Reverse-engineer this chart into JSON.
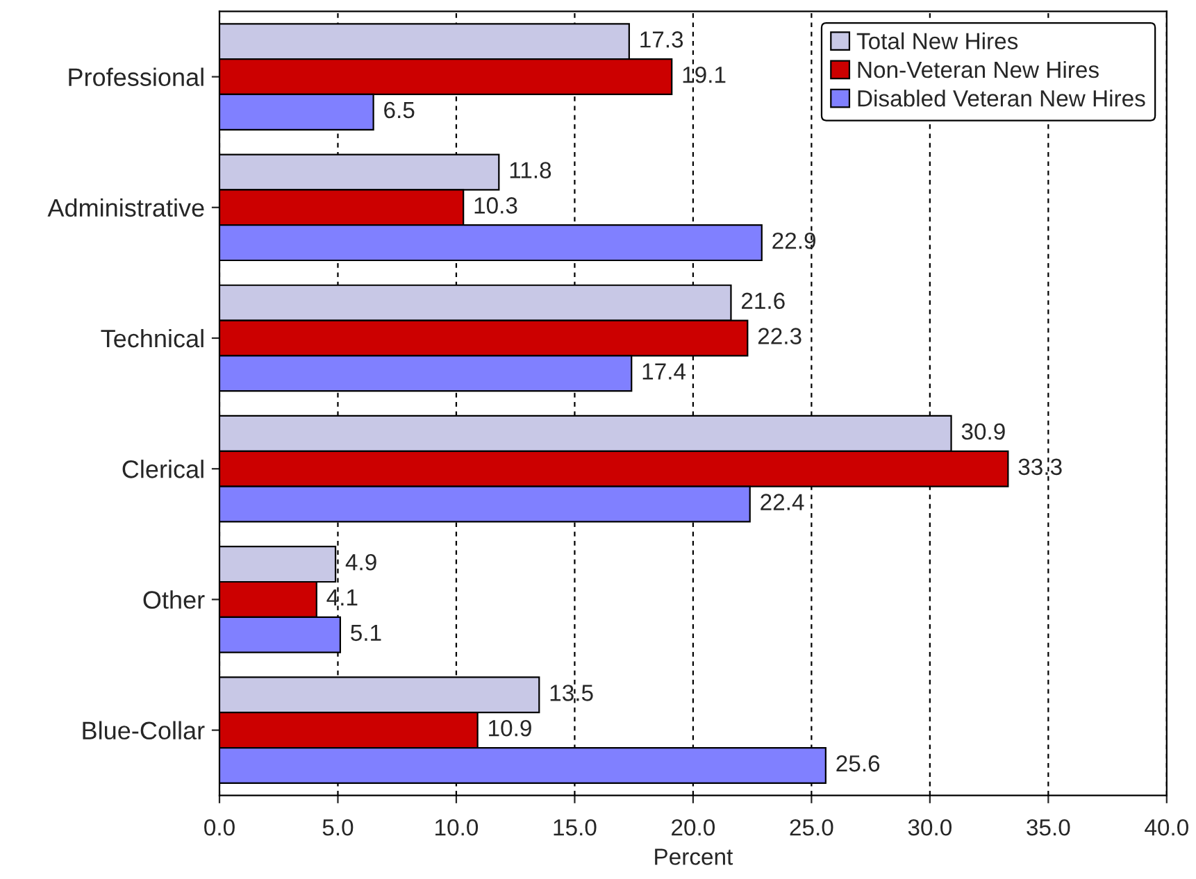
{
  "chart_data": {
    "type": "bar",
    "orientation": "horizontal",
    "xlabel": "Percent",
    "categories": [
      "Professional",
      "Administrative",
      "Technical",
      "Clerical",
      "Other",
      "Blue-Collar"
    ],
    "series": [
      {
        "name": "Total New Hires",
        "color": "#c8c8e6",
        "values": [
          17.3,
          11.8,
          21.6,
          30.9,
          4.9,
          13.5
        ]
      },
      {
        "name": "Non-Veteran New Hires",
        "color": "#cc0000",
        "values": [
          19.1,
          10.3,
          22.3,
          33.3,
          4.1,
          10.9
        ]
      },
      {
        "name": "Disabled Veteran New Hires",
        "color": "#8080ff",
        "values": [
          6.5,
          22.9,
          17.4,
          22.4,
          5.1,
          25.6
        ]
      }
    ],
    "xlim": [
      0,
      40
    ],
    "xticks": [
      {
        "value": 0,
        "label": "0.0"
      },
      {
        "value": 5,
        "label": "5.0"
      },
      {
        "value": 10,
        "label": "10.0"
      },
      {
        "value": 15,
        "label": "15.0"
      },
      {
        "value": 20,
        "label": "20.0"
      },
      {
        "value": 25,
        "label": "25.0"
      },
      {
        "value": 30,
        "label": "30.0"
      },
      {
        "value": 35,
        "label": "35.0"
      },
      {
        "value": 40,
        "label": "40.0"
      }
    ],
    "grid": "x",
    "legend": "top right",
    "data_labels": true
  }
}
